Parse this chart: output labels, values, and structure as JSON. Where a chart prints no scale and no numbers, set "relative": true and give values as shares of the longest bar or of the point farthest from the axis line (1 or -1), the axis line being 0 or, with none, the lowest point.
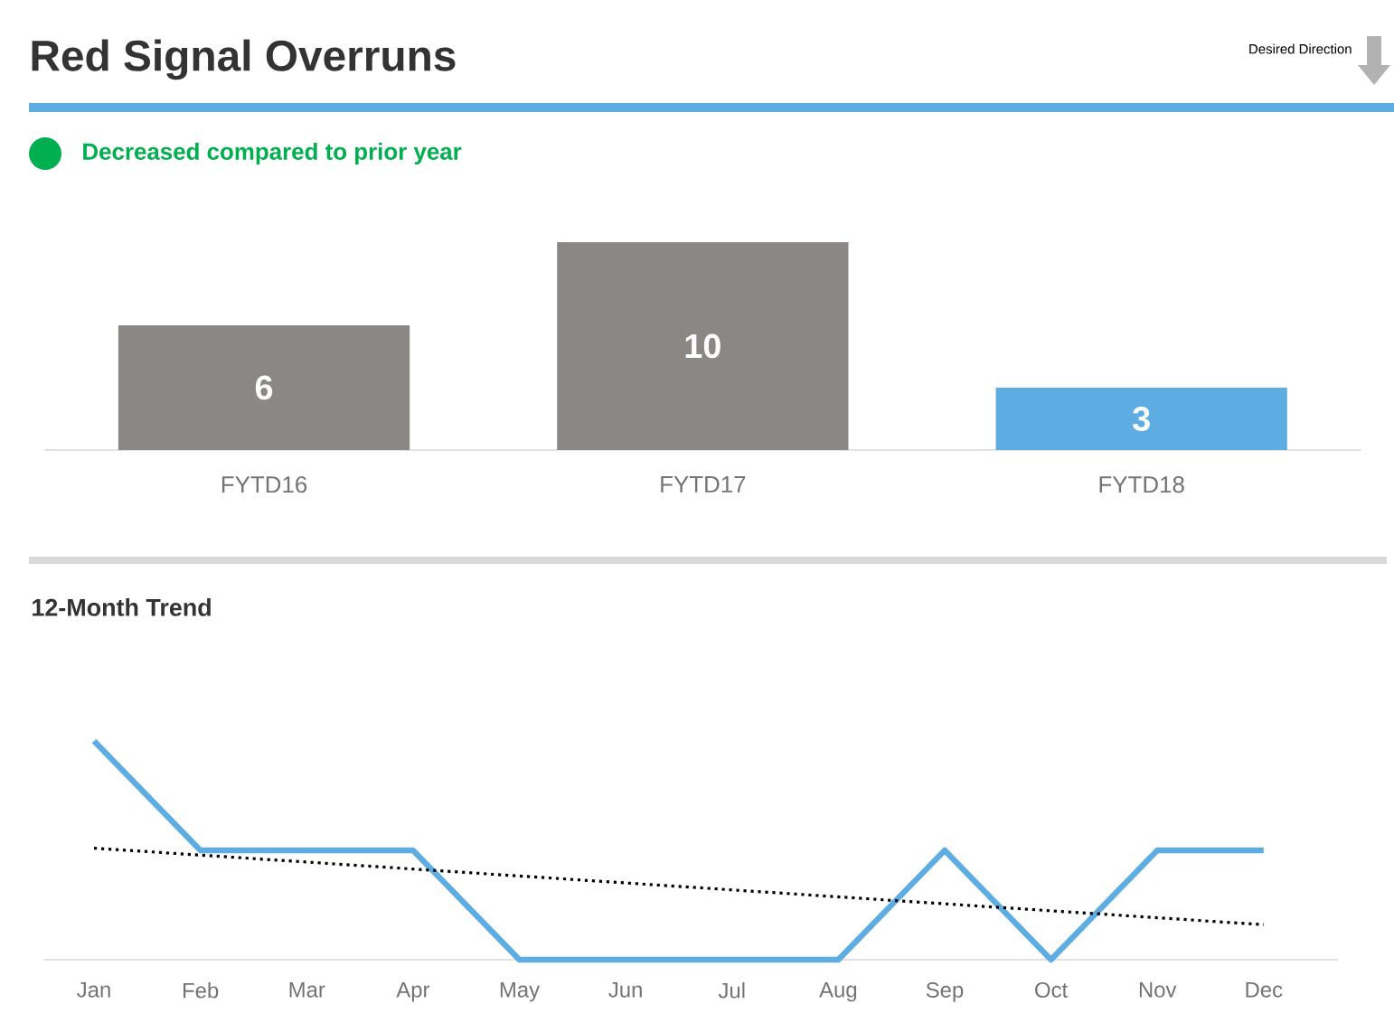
{
  "chart_data": [
    {
      "type": "bar",
      "title": "Red Signal Overruns",
      "subtitle": "Decreased compared to prior year",
      "annotations": [
        "Desired Direction"
      ],
      "categories": [
        "FYTD16",
        "FYTD17",
        "FYTD18"
      ],
      "values": [
        6,
        10,
        3
      ],
      "colors": [
        "#8b8785",
        "#8b8785",
        "#5dade2"
      ],
      "data_labels": true,
      "tick_labels": "x"
    },
    {
      "type": "line",
      "title": "12-Month Trend",
      "relative": true,
      "categories": [
        "Jan",
        "Feb",
        "Mar",
        "Apr",
        "May",
        "Jun",
        "Jul",
        "Aug",
        "Sep",
        "Oct",
        "Nov",
        "Dec"
      ],
      "series": [
        {
          "color": "#5dade2",
          "values": [
            1,
            0.5,
            0.5,
            0.5,
            0,
            0,
            0,
            0,
            0.5,
            0,
            0.5,
            0.5
          ]
        },
        {
          "type": "line",
          "color": "#000000",
          "line_style": "dotted",
          "values": [
            0.51,
            null,
            null,
            null,
            null,
            null,
            null,
            null,
            null,
            null,
            null,
            0.16
          ]
        }
      ]
    }
  ]
}
